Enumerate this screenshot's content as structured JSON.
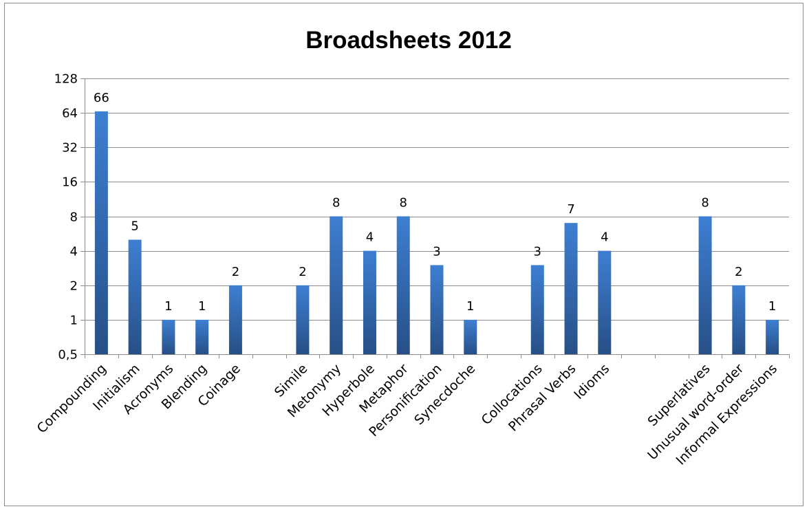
{
  "chart_data": {
    "type": "bar",
    "title": "Broadsheets 2012",
    "xlabel": "",
    "ylabel": "",
    "y_scale": "log2",
    "ylim": [
      0.5,
      128
    ],
    "y_ticks": [
      "0,5",
      "1",
      "2",
      "4",
      "8",
      "16",
      "32",
      "64",
      "128"
    ],
    "grid": true,
    "legend": "none",
    "colors": {
      "bar_top": "#3e7fd2",
      "bar_bottom": "#274f86",
      "grid": "#8c8c8c",
      "axis": "#8c8c8c"
    },
    "categories": [
      "Compounding",
      "Initialism",
      "Acronyms",
      "Blending",
      "Coinage",
      "",
      "Simile",
      "Metonymy",
      "Hyperbole",
      "Metaphor",
      "Personification",
      "Synecdoche",
      "",
      "Collocations",
      "Phrasal Verbs",
      "Idioms",
      "",
      "",
      "Superlatives",
      "Unusual word-order",
      "Informal Expressions"
    ],
    "values": [
      66,
      5,
      1,
      1,
      2,
      null,
      2,
      8,
      4,
      8,
      3,
      1,
      null,
      3,
      7,
      4,
      null,
      null,
      8,
      2,
      1
    ],
    "data_labels": [
      "66",
      "5",
      "1",
      "1",
      "2",
      "",
      "2",
      "8",
      "4",
      "8",
      "3",
      "1",
      "",
      "3",
      "7",
      "4",
      "",
      "",
      "8",
      "2",
      "1"
    ]
  }
}
